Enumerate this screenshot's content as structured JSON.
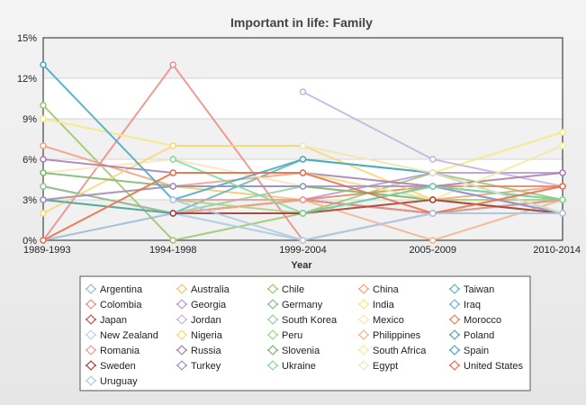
{
  "chart_data": {
    "type": "line",
    "title": "Important in life: Family",
    "xlabel": "Year",
    "ylabel": "",
    "categories": [
      "1989-1993",
      "1994-1998",
      "1999-2004",
      "2005-2009",
      "2010-2014"
    ],
    "ylim": [
      0,
      15
    ],
    "yticks": [
      "0%",
      "3%",
      "6%",
      "9%",
      "12%",
      "15%"
    ],
    "legend_position": "bottom",
    "grid": true,
    "series": [
      {
        "name": "Argentina",
        "color": "#9ab7d9",
        "values": [
          0,
          2,
          0,
          2,
          2
        ]
      },
      {
        "name": "Australia",
        "color": "#f3c36b",
        "values": [
          3,
          4,
          3,
          2,
          3
        ]
      },
      {
        "name": "Chile",
        "color": "#9dc46a",
        "values": [
          10,
          0,
          2,
          5,
          3
        ]
      },
      {
        "name": "China",
        "color": "#f0a07e",
        "values": [
          7,
          4,
          5,
          3,
          4
        ]
      },
      {
        "name": "Taiwan",
        "color": "#5fb3b3",
        "values": [
          null,
          2,
          6,
          5,
          2
        ]
      },
      {
        "name": "Colombia",
        "color": "#ee8a86",
        "values": [
          0,
          13,
          0,
          2,
          3
        ]
      },
      {
        "name": "Georgia",
        "color": "#b995cf",
        "values": [
          null,
          2,
          3,
          5,
          5
        ]
      },
      {
        "name": "Germany",
        "color": "#83bb83",
        "values": [
          3,
          2,
          3,
          2,
          3
        ]
      },
      {
        "name": "India",
        "color": "#f5ea7c",
        "values": [
          9,
          7,
          7,
          5,
          8
        ]
      },
      {
        "name": "Iraq",
        "color": "#6ab4dc",
        "values": [
          null,
          null,
          2,
          4,
          2
        ]
      },
      {
        "name": "Japan",
        "color": "#c0504d",
        "values": [
          4,
          2,
          3,
          2,
          2
        ]
      },
      {
        "name": "Jordan",
        "color": "#c3b3dc",
        "values": [
          null,
          null,
          11,
          6,
          4
        ]
      },
      {
        "name": "South Korea",
        "color": "#8fcfa5",
        "values": [
          4,
          2,
          4,
          3,
          2
        ]
      },
      {
        "name": "Mexico",
        "color": "#fae3b8",
        "values": [
          5,
          6,
          4,
          3,
          3
        ]
      },
      {
        "name": "Morocco",
        "color": "#e0825a",
        "values": [
          null,
          null,
          3,
          4,
          4
        ]
      },
      {
        "name": "New Zealand",
        "color": "#b5d3ea",
        "values": [
          null,
          2,
          0,
          2,
          2
        ]
      },
      {
        "name": "Nigeria",
        "color": "#f7d774",
        "values": [
          2,
          7,
          7,
          3,
          3
        ]
      },
      {
        "name": "Peru",
        "color": "#a6d182",
        "values": [
          null,
          3,
          2,
          3,
          3
        ]
      },
      {
        "name": "Philippines",
        "color": "#f3b28b",
        "values": [
          null,
          2,
          3,
          0,
          3
        ]
      },
      {
        "name": "Poland",
        "color": "#4fa79e",
        "values": [
          3,
          2,
          2,
          4,
          3
        ]
      },
      {
        "name": "Romania",
        "color": "#ea9999",
        "values": [
          null,
          3,
          3,
          2,
          3
        ]
      },
      {
        "name": "Russia",
        "color": "#a67bab",
        "values": [
          6,
          5,
          5,
          4,
          5
        ]
      },
      {
        "name": "Slovenia",
        "color": "#79b56b",
        "values": [
          5,
          4,
          4,
          3,
          2
        ]
      },
      {
        "name": "South Africa",
        "color": "#eded9a",
        "values": [
          0,
          5,
          5,
          3,
          7
        ]
      },
      {
        "name": "Spain",
        "color": "#42a8c4",
        "values": [
          13,
          3,
          6,
          5,
          2
        ]
      },
      {
        "name": "Sweden",
        "color": "#b03a3a",
        "values": [
          null,
          2,
          2,
          3,
          2
        ]
      },
      {
        "name": "Turkey",
        "color": "#9d8ec9",
        "values": [
          3,
          4,
          4,
          4,
          2
        ]
      },
      {
        "name": "Ukraine",
        "color": "#7dd99b",
        "values": [
          null,
          6,
          2,
          4,
          3
        ]
      },
      {
        "name": "Egypt",
        "color": "#f0e6c4",
        "values": [
          null,
          null,
          7,
          5,
          2
        ]
      },
      {
        "name": "United States",
        "color": "#e86a4a",
        "values": [
          0,
          5,
          5,
          2,
          4
        ]
      },
      {
        "name": "Uruguay",
        "color": "#b0c8e0",
        "values": [
          null,
          3,
          0,
          2,
          2
        ]
      }
    ]
  }
}
